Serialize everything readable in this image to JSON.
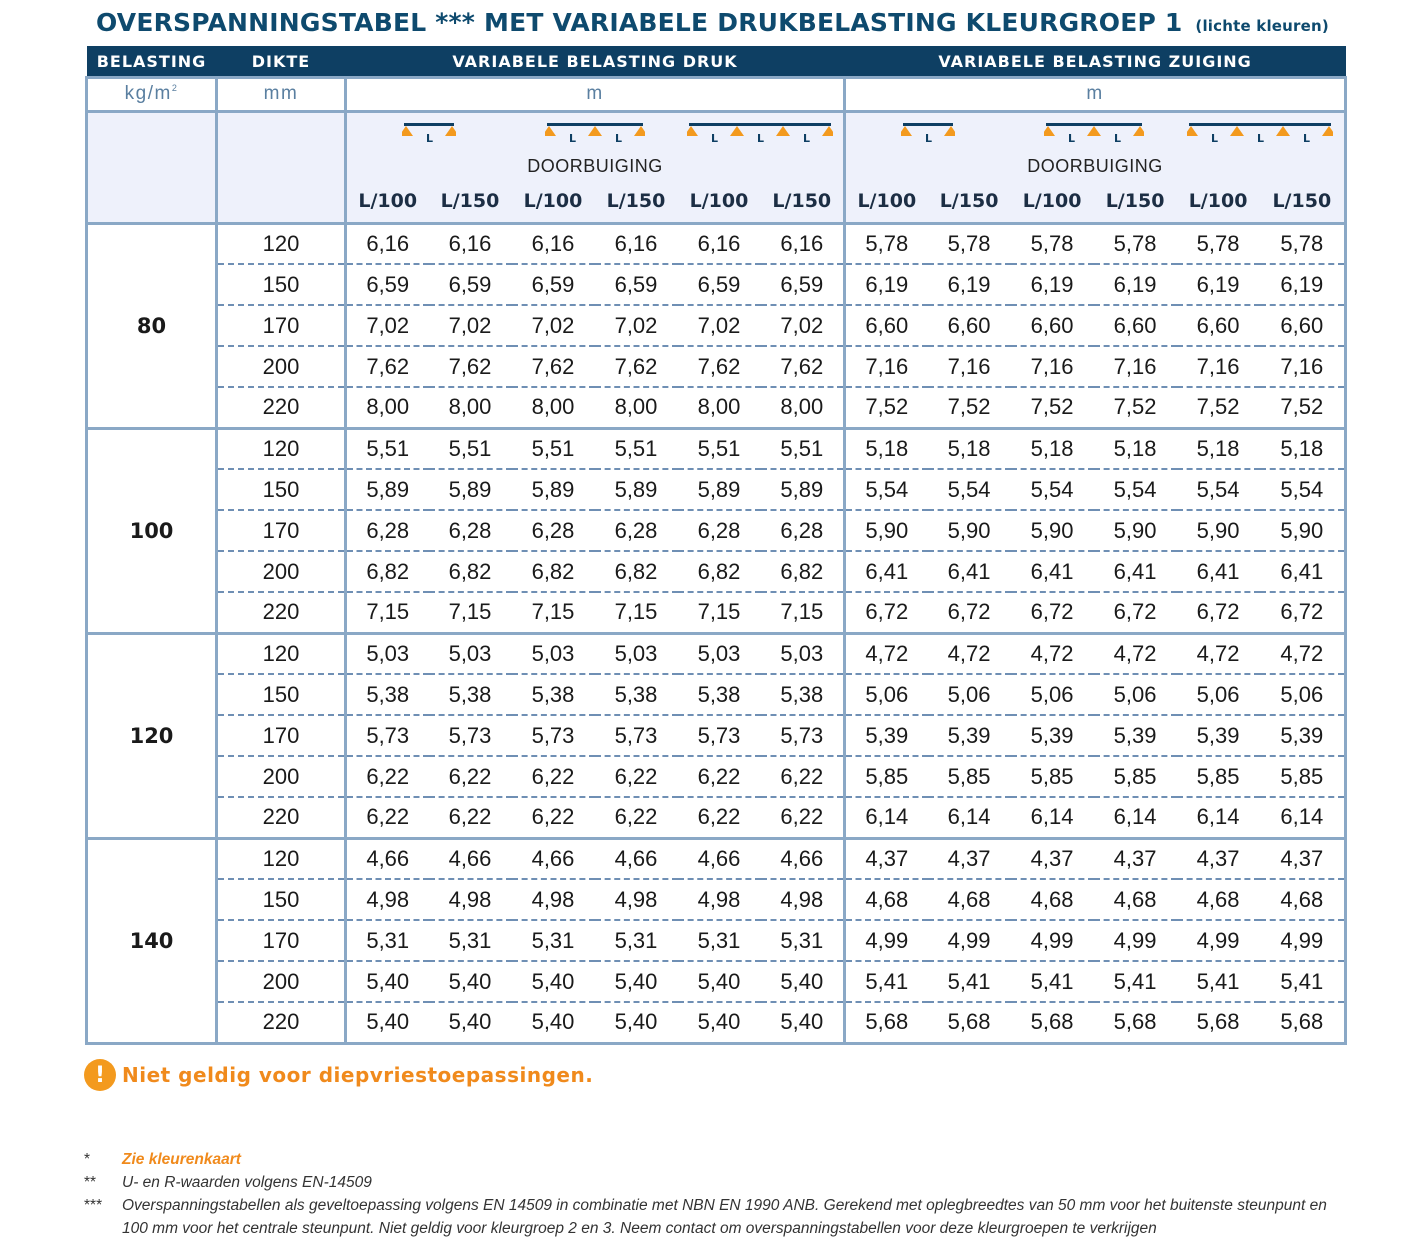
{
  "title": {
    "main": "OVERSPANNINGSTABEL *** MET VARIABELE DRUKBELASTING KLEURGROEP 1",
    "sub": "(lichte kleuren)"
  },
  "header": {
    "col_belasting": "BELASTING",
    "col_dikte": "DIKTE",
    "group_druk": "VARIABELE BELASTING DRUK",
    "group_zuiging": "VARIABELE BELASTING ZUIGING",
    "unit_belasting": "kg/m",
    "unit_belasting_sup": "2",
    "unit_dikte": "mm",
    "unit_druk": "m",
    "unit_zuiging": "m",
    "doorbuiging": "DOORBUIGING",
    "support_icons": [
      "single-span-icon",
      "double-span-icon",
      "triple-span-icon"
    ],
    "span_label": "L",
    "deflection_labels": [
      "L/100",
      "L/150",
      "L/100",
      "L/150",
      "L/100",
      "L/150",
      "L/100",
      "L/150",
      "L/100",
      "L/150",
      "L/100",
      "L/150"
    ]
  },
  "groups": [
    {
      "belasting": "80",
      "rows": [
        {
          "dikte": "120",
          "druk": [
            "6,16",
            "6,16",
            "6,16",
            "6,16",
            "6,16",
            "6,16"
          ],
          "zuiging": [
            "5,78",
            "5,78",
            "5,78",
            "5,78",
            "5,78",
            "5,78"
          ]
        },
        {
          "dikte": "150",
          "druk": [
            "6,59",
            "6,59",
            "6,59",
            "6,59",
            "6,59",
            "6,59"
          ],
          "zuiging": [
            "6,19",
            "6,19",
            "6,19",
            "6,19",
            "6,19",
            "6,19"
          ]
        },
        {
          "dikte": "170",
          "druk": [
            "7,02",
            "7,02",
            "7,02",
            "7,02",
            "7,02",
            "7,02"
          ],
          "zuiging": [
            "6,60",
            "6,60",
            "6,60",
            "6,60",
            "6,60",
            "6,60"
          ]
        },
        {
          "dikte": "200",
          "druk": [
            "7,62",
            "7,62",
            "7,62",
            "7,62",
            "7,62",
            "7,62"
          ],
          "zuiging": [
            "7,16",
            "7,16",
            "7,16",
            "7,16",
            "7,16",
            "7,16"
          ]
        },
        {
          "dikte": "220",
          "druk": [
            "8,00",
            "8,00",
            "8,00",
            "8,00",
            "8,00",
            "8,00"
          ],
          "zuiging": [
            "7,52",
            "7,52",
            "7,52",
            "7,52",
            "7,52",
            "7,52"
          ]
        }
      ]
    },
    {
      "belasting": "100",
      "rows": [
        {
          "dikte": "120",
          "druk": [
            "5,51",
            "5,51",
            "5,51",
            "5,51",
            "5,51",
            "5,51"
          ],
          "zuiging": [
            "5,18",
            "5,18",
            "5,18",
            "5,18",
            "5,18",
            "5,18"
          ]
        },
        {
          "dikte": "150",
          "druk": [
            "5,89",
            "5,89",
            "5,89",
            "5,89",
            "5,89",
            "5,89"
          ],
          "zuiging": [
            "5,54",
            "5,54",
            "5,54",
            "5,54",
            "5,54",
            "5,54"
          ]
        },
        {
          "dikte": "170",
          "druk": [
            "6,28",
            "6,28",
            "6,28",
            "6,28",
            "6,28",
            "6,28"
          ],
          "zuiging": [
            "5,90",
            "5,90",
            "5,90",
            "5,90",
            "5,90",
            "5,90"
          ]
        },
        {
          "dikte": "200",
          "druk": [
            "6,82",
            "6,82",
            "6,82",
            "6,82",
            "6,82",
            "6,82"
          ],
          "zuiging": [
            "6,41",
            "6,41",
            "6,41",
            "6,41",
            "6,41",
            "6,41"
          ]
        },
        {
          "dikte": "220",
          "druk": [
            "7,15",
            "7,15",
            "7,15",
            "7,15",
            "7,15",
            "7,15"
          ],
          "zuiging": [
            "6,72",
            "6,72",
            "6,72",
            "6,72",
            "6,72",
            "6,72"
          ]
        }
      ]
    },
    {
      "belasting": "120",
      "rows": [
        {
          "dikte": "120",
          "druk": [
            "5,03",
            "5,03",
            "5,03",
            "5,03",
            "5,03",
            "5,03"
          ],
          "zuiging": [
            "4,72",
            "4,72",
            "4,72",
            "4,72",
            "4,72",
            "4,72"
          ]
        },
        {
          "dikte": "150",
          "druk": [
            "5,38",
            "5,38",
            "5,38",
            "5,38",
            "5,38",
            "5,38"
          ],
          "zuiging": [
            "5,06",
            "5,06",
            "5,06",
            "5,06",
            "5,06",
            "5,06"
          ]
        },
        {
          "dikte": "170",
          "druk": [
            "5,73",
            "5,73",
            "5,73",
            "5,73",
            "5,73",
            "5,73"
          ],
          "zuiging": [
            "5,39",
            "5,39",
            "5,39",
            "5,39",
            "5,39",
            "5,39"
          ]
        },
        {
          "dikte": "200",
          "druk": [
            "6,22",
            "6,22",
            "6,22",
            "6,22",
            "6,22",
            "6,22"
          ],
          "zuiging": [
            "5,85",
            "5,85",
            "5,85",
            "5,85",
            "5,85",
            "5,85"
          ]
        },
        {
          "dikte": "220",
          "druk": [
            "6,22",
            "6,22",
            "6,22",
            "6,22",
            "6,22",
            "6,22"
          ],
          "zuiging": [
            "6,14",
            "6,14",
            "6,14",
            "6,14",
            "6,14",
            "6,14"
          ]
        }
      ]
    },
    {
      "belasting": "140",
      "rows": [
        {
          "dikte": "120",
          "druk": [
            "4,66",
            "4,66",
            "4,66",
            "4,66",
            "4,66",
            "4,66"
          ],
          "zuiging": [
            "4,37",
            "4,37",
            "4,37",
            "4,37",
            "4,37",
            "4,37"
          ]
        },
        {
          "dikte": "150",
          "druk": [
            "4,98",
            "4,98",
            "4,98",
            "4,98",
            "4,98",
            "4,98"
          ],
          "zuiging": [
            "4,68",
            "4,68",
            "4,68",
            "4,68",
            "4,68",
            "4,68"
          ]
        },
        {
          "dikte": "170",
          "druk": [
            "5,31",
            "5,31",
            "5,31",
            "5,31",
            "5,31",
            "5,31"
          ],
          "zuiging": [
            "4,99",
            "4,99",
            "4,99",
            "4,99",
            "4,99",
            "4,99"
          ]
        },
        {
          "dikte": "200",
          "druk": [
            "5,40",
            "5,40",
            "5,40",
            "5,40",
            "5,40",
            "5,40"
          ],
          "zuiging": [
            "5,41",
            "5,41",
            "5,41",
            "5,41",
            "5,41",
            "5,41"
          ]
        },
        {
          "dikte": "220",
          "druk": [
            "5,40",
            "5,40",
            "5,40",
            "5,40",
            "5,40",
            "5,40"
          ],
          "zuiging": [
            "5,68",
            "5,68",
            "5,68",
            "5,68",
            "5,68",
            "5,68"
          ]
        }
      ]
    }
  ],
  "warning": {
    "icon": "exclamation-icon",
    "text": "Niet geldig voor diepvriestoepassingen."
  },
  "notes": [
    {
      "mark": "*",
      "text": "Zie kleurenkaart",
      "highlight": true
    },
    {
      "mark": "**",
      "text": "U- en R-waarden volgens EN-14509",
      "highlight": false
    },
    {
      "mark": "***",
      "text": "Overspanningstabellen als geveltoepassing volgens EN 14509 in combinatie met NBN EN 1990 ANB. Gerekend met oplegbreedtes van 50 mm voor het buitenste steunpunt en 100 mm voor het centrale steunpunt. Niet geldig voor kleurgroep 2 en 3. Neem contact om overspanningstabellen voor deze kleurgroepen te verkrijgen",
      "highlight": false
    }
  ],
  "colors": {
    "header_bg": "#0e3f63",
    "title": "#0e4a6e",
    "grid": "#8aa8c6",
    "support_triangle": "#f39a1e",
    "warning": "#f08a1c"
  }
}
